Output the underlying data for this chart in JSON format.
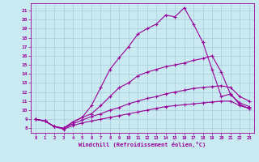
{
  "bg_color": "#c8eaf0",
  "line_color": "#990099",
  "grid_color": "#aaccdd",
  "xlabel": "Windchill (Refroidissement éolien,°C)",
  "xlabel_color": "#990099",
  "tick_color": "#990099",
  "xlim": [
    -0.5,
    23.5
  ],
  "ylim": [
    7.5,
    21.8
  ],
  "yticks": [
    8,
    9,
    10,
    11,
    12,
    13,
    14,
    15,
    16,
    17,
    18,
    19,
    20,
    21
  ],
  "xticks": [
    0,
    1,
    2,
    3,
    4,
    5,
    6,
    7,
    8,
    9,
    10,
    11,
    12,
    13,
    14,
    15,
    16,
    17,
    18,
    19,
    20,
    21,
    22,
    23
  ],
  "series1_x": [
    0,
    1,
    2,
    3,
    4,
    5,
    6,
    7,
    8,
    9,
    10,
    11,
    12,
    13,
    14,
    15,
    16,
    17,
    18,
    19,
    20,
    21,
    22,
    23
  ],
  "series1_y": [
    9.0,
    8.8,
    8.2,
    7.9,
    8.3,
    8.6,
    8.8,
    9.0,
    9.2,
    9.4,
    9.6,
    9.8,
    10.0,
    10.2,
    10.4,
    10.5,
    10.6,
    10.7,
    10.8,
    10.9,
    11.0,
    11.0,
    10.5,
    10.2
  ],
  "series2_x": [
    0,
    1,
    2,
    3,
    4,
    5,
    6,
    7,
    8,
    9,
    10,
    11,
    12,
    13,
    14,
    15,
    16,
    17,
    18,
    19,
    20,
    21,
    22,
    23
  ],
  "series2_y": [
    9.0,
    8.8,
    8.2,
    8.0,
    8.5,
    8.9,
    9.3,
    9.6,
    10.0,
    10.3,
    10.7,
    11.0,
    11.3,
    11.5,
    11.8,
    12.0,
    12.2,
    12.4,
    12.5,
    12.6,
    12.7,
    12.5,
    11.5,
    11.0
  ],
  "series3_x": [
    0,
    1,
    2,
    3,
    4,
    5,
    6,
    7,
    8,
    9,
    10,
    11,
    12,
    13,
    14,
    15,
    16,
    17,
    18,
    19,
    20,
    21,
    22,
    23
  ],
  "series3_y": [
    9.0,
    8.8,
    8.2,
    8.0,
    8.7,
    9.2,
    9.6,
    10.5,
    11.5,
    12.5,
    13.0,
    13.8,
    14.2,
    14.5,
    14.8,
    15.0,
    15.2,
    15.5,
    15.7,
    16.0,
    14.2,
    11.7,
    10.8,
    10.4
  ],
  "series4_x": [
    0,
    1,
    2,
    3,
    4,
    5,
    6,
    7,
    8,
    9,
    10,
    11,
    12,
    13,
    14,
    15,
    16,
    17,
    18,
    19,
    20,
    21,
    22,
    23
  ],
  "series4_y": [
    9.0,
    8.8,
    8.2,
    8.0,
    8.7,
    9.2,
    10.5,
    12.5,
    14.5,
    15.8,
    17.0,
    18.4,
    19.0,
    19.5,
    20.5,
    20.3,
    21.3,
    19.5,
    17.5,
    14.5,
    11.5,
    11.8,
    10.6,
    10.2
  ],
  "marker": "+",
  "markersize": 3.5,
  "linewidth": 0.8
}
